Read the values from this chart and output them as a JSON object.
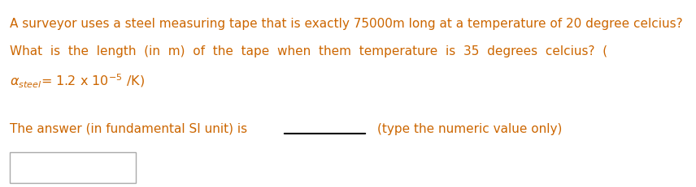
{
  "line1": "A surveyor uses a steel measuring tape that is exactly 75000m long at a temperature of 20 degree celcius?",
  "line2": "What  is  the  length  (in  m)  of  the  tape  when  them  temperature  is  35  degrees  celcius?  (",
  "line3_math": "$\\alpha_{steel}$= 1.2 x 10$^{-5}$ /K)",
  "answer_prefix": "The answer (in fundamental SI unit) is ",
  "answer_suffix": "(type the numeric value only)",
  "text_color": "#cc6600",
  "answer_color": "#cc6600",
  "fig_width": 8.56,
  "fig_height": 2.32,
  "dpi": 100
}
